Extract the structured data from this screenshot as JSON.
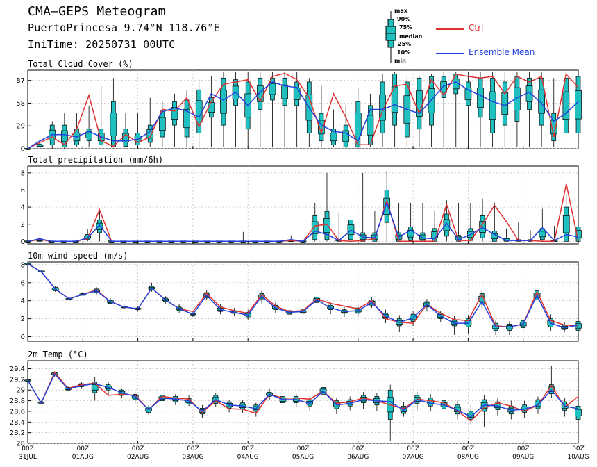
{
  "header": {
    "title": "CMA—GEPS Meteogram",
    "location": "PuertoPrincesa 9.74°N 118.76°E",
    "inittime": "IniTime: 20250731 00UTC"
  },
  "legend": {
    "box_labels": [
      "max",
      "90%",
      "75%",
      "median",
      "25%",
      "10%",
      "min"
    ],
    "ctrl_label": "Ctrl",
    "mean_label": "Ensemble Mean",
    "ctrl_color": "#e03030",
    "mean_color": "#2040e0",
    "box_color": "#20c0c0"
  },
  "x_ticks": [
    {
      "top": "00Z",
      "bottom": "31JUL"
    },
    {
      "top": "00Z",
      "bottom": "01AUG"
    },
    {
      "top": "00Z",
      "bottom": "02AUG"
    },
    {
      "top": "00Z",
      "bottom": "03AUG"
    },
    {
      "top": "00Z",
      "bottom": "04AUG"
    },
    {
      "top": "00Z",
      "bottom": "05AUG"
    },
    {
      "top": "00Z",
      "bottom": "06AUG"
    },
    {
      "top": "00Z",
      "bottom": "07AUG"
    },
    {
      "top": "00Z",
      "bottom": "08AUG"
    },
    {
      "top": "00Z",
      "bottom": "09AUG"
    },
    {
      "top": "00Z",
      "bottom": "10AUG"
    }
  ],
  "chart_data": [
    {
      "type": "line",
      "title": "Total Cloud Cover (%)",
      "ylim": [
        0,
        100
      ],
      "yticks": [
        "0",
        "29",
        "58",
        "87"
      ],
      "ytick_values": [
        0,
        29,
        58,
        87
      ],
      "ctrl": [
        0,
        8,
        15,
        5,
        25,
        68,
        10,
        3,
        18,
        8,
        15,
        50,
        48,
        65,
        28,
        60,
        82,
        85,
        88,
        60,
        92,
        96,
        88,
        65,
        20,
        70,
        40,
        5,
        5,
        48,
        80,
        82,
        45,
        88,
        68,
        95,
        92,
        90,
        92,
        70,
        92,
        85,
        92,
        15,
        95,
        78
      ],
      "mean": [
        0,
        10,
        18,
        18,
        15,
        22,
        15,
        10,
        10,
        12,
        22,
        47,
        52,
        48,
        40,
        70,
        62,
        72,
        55,
        72,
        85,
        80,
        78,
        52,
        30,
        22,
        20,
        10,
        50,
        50,
        56,
        50,
        45,
        62,
        80,
        85,
        75,
        68,
        60,
        55,
        65,
        72,
        58,
        35,
        45,
        60
      ],
      "box_lo": [
        0,
        0,
        0,
        0,
        2,
        2,
        2,
        2,
        2,
        2,
        2,
        2,
        2,
        2,
        2,
        2,
        2,
        2,
        2,
        2,
        2,
        2,
        2,
        2,
        2,
        2,
        2,
        2,
        2,
        2,
        2,
        2,
        2,
        2,
        2,
        2,
        2,
        2,
        2,
        2,
        2,
        2,
        2,
        2,
        2,
        2
      ],
      "box_q1": [
        0,
        2,
        5,
        2,
        5,
        10,
        5,
        2,
        3,
        5,
        8,
        15,
        30,
        15,
        20,
        40,
        30,
        55,
        25,
        50,
        62,
        55,
        55,
        20,
        10,
        5,
        2,
        2,
        5,
        20,
        30,
        15,
        25,
        30,
        65,
        70,
        55,
        40,
        20,
        30,
        35,
        50,
        30,
        10,
        20,
        20
      ],
      "box_q3": [
        0,
        6,
        30,
        30,
        25,
        25,
        25,
        60,
        25,
        20,
        30,
        48,
        60,
        62,
        75,
        65,
        90,
        88,
        85,
        90,
        90,
        90,
        85,
        85,
        45,
        25,
        30,
        60,
        55,
        85,
        95,
        85,
        90,
        92,
        92,
        95,
        85,
        90,
        90,
        85,
        92,
        90,
        90,
        45,
        90,
        92
      ],
      "box_hi": [
        0,
        18,
        35,
        45,
        45,
        55,
        80,
        90,
        45,
        45,
        65,
        60,
        70,
        75,
        88,
        92,
        98,
        98,
        98,
        98,
        98,
        98,
        98,
        90,
        80,
        50,
        55,
        78,
        70,
        95,
        98,
        92,
        92,
        95,
        98,
        98,
        98,
        98,
        98,
        98,
        98,
        98,
        98,
        90,
        98,
        98
      ]
    },
    {
      "type": "line",
      "title": "Total precipitation (mm/6h)",
      "ylim": [
        -0.3,
        8.8
      ],
      "yticks": [
        "0",
        "2",
        "4",
        "6",
        "8"
      ],
      "ytick_values": [
        0,
        2,
        4,
        6,
        8
      ],
      "ctrl": [
        0,
        0.2,
        0,
        0,
        0,
        0.3,
        3.7,
        0,
        0,
        0,
        0,
        0,
        0,
        0,
        0,
        0,
        0,
        0,
        0,
        0,
        0,
        0,
        0.1,
        0,
        1.8,
        2,
        0.1,
        0,
        0.1,
        0.3,
        4.8,
        0,
        0,
        0,
        0,
        4.3,
        0.1,
        0.1,
        2,
        4.2,
        2.3,
        0.1,
        0.1,
        0,
        0,
        6.7,
        0
      ],
      "mean": [
        0,
        0.3,
        0,
        0,
        0,
        0.4,
        1.9,
        0,
        0,
        0,
        0,
        0,
        0,
        0,
        0,
        0,
        0,
        0,
        0,
        0,
        0,
        0,
        0.2,
        0,
        1.2,
        0.8,
        0.1,
        1.3,
        0.5,
        0.4,
        4.5,
        0.5,
        1.3,
        0.4,
        0.3,
        2.1,
        0.2,
        0.8,
        1.6,
        0.8,
        0.1,
        0.1,
        0.1,
        1.6,
        0.1,
        0.8,
        0.5
      ],
      "box_lo": [
        0,
        0,
        0,
        0,
        0,
        0,
        0,
        0,
        0,
        0,
        0,
        0,
        0,
        0,
        0,
        0,
        0,
        0,
        0,
        0,
        0,
        0,
        0,
        0,
        0,
        0,
        0,
        0,
        0,
        0,
        0,
        0,
        0,
        0,
        0,
        0,
        0,
        0,
        0,
        0,
        0,
        0,
        0,
        0,
        0,
        0,
        0
      ],
      "box_q1": [
        0,
        0,
        0,
        0,
        0,
        0.2,
        1,
        0,
        0,
        0,
        0,
        0,
        0,
        0,
        0,
        0,
        0,
        0,
        0,
        0,
        0,
        0,
        0,
        0,
        0.2,
        0.2,
        0,
        0.2,
        0,
        0,
        2.2,
        0,
        0.1,
        0,
        0,
        0.6,
        0,
        0.1,
        0.4,
        0,
        0,
        0,
        0,
        0.2,
        0,
        0,
        0
      ],
      "box_q3": [
        0,
        0.3,
        0,
        0,
        0,
        0.8,
        2.5,
        0,
        0,
        0,
        0,
        0,
        0,
        0,
        0,
        0,
        0,
        0,
        0,
        0,
        0,
        0,
        0.1,
        0,
        3,
        3.5,
        0.2,
        2.5,
        1,
        1,
        6,
        1,
        1.7,
        1,
        1.5,
        3.2,
        0.7,
        1.5,
        3,
        1.2,
        0.4,
        0.2,
        0.2,
        1.5,
        0.1,
        4,
        1.7
      ],
      "box_hi": [
        0,
        0.4,
        0,
        0,
        0,
        1.4,
        3.8,
        0,
        0,
        0,
        0,
        0,
        0,
        0,
        0,
        0,
        0,
        0,
        1.1,
        0,
        0,
        0,
        0.7,
        0,
        4.5,
        8,
        3.3,
        4.5,
        8,
        3.6,
        8.2,
        4.5,
        4.5,
        4.5,
        3.5,
        4.8,
        4.5,
        4.5,
        5,
        4.5,
        1.5,
        2.2,
        1.3,
        3.8,
        1.8,
        5.5,
        1.8
      ]
    },
    {
      "type": "line",
      "title": "10m wind speed (m/s)",
      "ylim": [
        -0.5,
        8.3
      ],
      "yticks": [
        "0",
        "2",
        "4",
        "6",
        "8"
      ],
      "ytick_values": [
        0,
        2,
        4,
        6,
        8
      ],
      "ctrl": [
        8.1,
        7.2,
        5.3,
        4.2,
        4.7,
        5.2,
        3.9,
        3.3,
        3.1,
        5.4,
        4.1,
        3.1,
        2.8,
        4.8,
        3.3,
        2.9,
        2.6,
        4.7,
        3.4,
        2.8,
        2.9,
        4.2,
        3.7,
        3.4,
        3.1,
        4,
        2,
        1.6,
        1.5,
        3.6,
        2.6,
        1.9,
        1.8,
        4.7,
        1.2,
        1.1,
        1.4,
        5,
        1.8,
        1.3,
        1.2
      ],
      "mean": [
        8.1,
        7.2,
        5.3,
        4.2,
        4.7,
        5.1,
        3.9,
        3.3,
        3.1,
        5.4,
        4.1,
        3.1,
        2.5,
        4.6,
        3,
        2.7,
        2.4,
        4.5,
        3.2,
        2.7,
        2.8,
        4.1,
        3.2,
        2.8,
        2.9,
        3.8,
        2.3,
        1.6,
        2.1,
        3.6,
        2.3,
        1.5,
        1.5,
        3.9,
        1.1,
        1.1,
        1.4,
        4.6,
        1.5,
        1,
        1.3
      ],
      "box_lo": [
        8.1,
        7.1,
        5,
        4,
        4.5,
        4.7,
        3.6,
        3.1,
        2.8,
        5,
        3.6,
        2.6,
        2.2,
        4.1,
        2.5,
        2.3,
        1.9,
        3.7,
        2.6,
        2.3,
        2.3,
        3.5,
        2.5,
        2.2,
        2.2,
        3.2,
        1.5,
        0.5,
        1.2,
        2.8,
        1.6,
        0.2,
        0.3,
        3,
        0.2,
        0.2,
        0.5,
        3.5,
        0.6,
        0.5,
        0.3
      ],
      "box_q1": [
        8.1,
        7.2,
        5.1,
        4.1,
        4.6,
        4.9,
        3.7,
        3.2,
        3,
        5.2,
        3.9,
        2.9,
        2.4,
        4.3,
        2.8,
        2.6,
        2.2,
        4.2,
        3,
        2.5,
        2.6,
        3.8,
        3,
        2.6,
        2.6,
        3.5,
        2,
        1.2,
        1.7,
        3.3,
        2,
        1.2,
        1.1,
        3.6,
        0.7,
        0.7,
        1,
        4.1,
        1.1,
        0.8,
        0.7
      ],
      "box_q3": [
        8.1,
        7.3,
        5.5,
        4.3,
        4.8,
        5.3,
        4.1,
        3.4,
        3.2,
        5.6,
        4.3,
        3.3,
        2.6,
        4.9,
        3.3,
        2.9,
        2.7,
        4.8,
        3.5,
        2.9,
        3,
        4.4,
        3.5,
        3,
        3.2,
        4.1,
        2.6,
        2,
        2.5,
        3.9,
        2.6,
        1.9,
        2,
        4.8,
        1.5,
        1.4,
        1.8,
        5.1,
        2,
        1.3,
        1.7
      ],
      "box_hi": [
        8.1,
        7.4,
        5.6,
        4.4,
        5,
        5.5,
        4.3,
        3.6,
        3.4,
        6,
        4.5,
        3.6,
        2.9,
        5.2,
        3.6,
        3.2,
        3,
        5.1,
        3.8,
        3.1,
        3.3,
        4.7,
        3.8,
        3.3,
        3.5,
        4.4,
        3,
        2.4,
        2.9,
        4.2,
        2.9,
        2.3,
        2.4,
        5.2,
        1.8,
        1.7,
        2.1,
        5.4,
        2.5,
        1.6,
        2
      ]
    },
    {
      "type": "line",
      "title": "2m Temp (°C)",
      "ylim": [
        28,
        29.55
      ],
      "yticks": [
        "28",
        "28.2",
        "28.4",
        "28.6",
        "28.8",
        "29",
        "29.2",
        "29.4"
      ],
      "ytick_values": [
        28,
        28.2,
        28.4,
        28.6,
        28.8,
        29,
        29.2,
        29.4
      ],
      "ctrl": [
        29.18,
        28.76,
        29.33,
        29.03,
        29.1,
        29.13,
        28.9,
        28.92,
        28.9,
        28.63,
        28.88,
        28.85,
        28.83,
        28.58,
        28.8,
        28.65,
        28.64,
        28.56,
        28.92,
        28.85,
        28.85,
        28.83,
        28.98,
        28.75,
        28.78,
        28.85,
        28.8,
        28.72,
        28.65,
        28.83,
        28.8,
        28.76,
        28.61,
        28.42,
        28.67,
        28.76,
        28.7,
        28.6,
        28.72,
        29.08,
        28.68,
        28.88
      ],
      "mean": [
        29.18,
        28.76,
        29.3,
        29.02,
        29.08,
        29.12,
        29.05,
        28.95,
        28.88,
        28.63,
        28.85,
        28.83,
        28.8,
        28.6,
        28.82,
        28.72,
        28.7,
        28.65,
        28.92,
        28.82,
        28.82,
        28.75,
        28.98,
        28.72,
        28.75,
        28.82,
        28.8,
        28.78,
        28.62,
        28.82,
        28.75,
        28.72,
        28.62,
        28.5,
        28.72,
        28.7,
        28.62,
        28.64,
        28.72,
        29.0,
        28.7,
        28.65
      ],
      "box_lo": [
        29.18,
        28.74,
        29.24,
        28.98,
        29.02,
        28.8,
        28.9,
        28.85,
        28.75,
        28.54,
        28.72,
        28.72,
        28.7,
        28.48,
        28.68,
        28.58,
        28.56,
        28.5,
        28.82,
        28.7,
        28.68,
        28.6,
        28.86,
        28.55,
        28.62,
        28.65,
        28.6,
        28.05,
        28.5,
        28.62,
        28.6,
        28.5,
        28.45,
        28.35,
        28.3,
        28.52,
        28.45,
        28.48,
        28.55,
        28.85,
        28.5,
        28.3
      ],
      "box_q1": [
        29.18,
        28.75,
        29.28,
        29.0,
        29.06,
        28.95,
        29.0,
        28.9,
        28.82,
        28.58,
        28.8,
        28.78,
        28.74,
        28.55,
        28.75,
        28.66,
        28.64,
        28.6,
        28.88,
        28.76,
        28.76,
        28.7,
        28.92,
        28.65,
        28.7,
        28.76,
        28.72,
        28.45,
        28.56,
        28.75,
        28.7,
        28.65,
        28.55,
        28.45,
        28.6,
        28.63,
        28.55,
        28.58,
        28.65,
        28.93,
        28.62,
        28.45
      ],
      "box_q3": [
        29.18,
        28.78,
        29.33,
        29.05,
        29.12,
        29.15,
        29.1,
        29.0,
        28.92,
        28.68,
        28.9,
        28.88,
        28.84,
        28.66,
        28.9,
        28.78,
        28.76,
        28.72,
        28.96,
        28.88,
        28.88,
        28.82,
        29.05,
        28.8,
        28.82,
        28.9,
        28.88,
        29.0,
        28.7,
        28.9,
        28.85,
        28.8,
        28.72,
        28.6,
        28.82,
        28.78,
        28.7,
        28.72,
        28.82,
        29.1,
        28.78,
        28.7
      ],
      "box_hi": [
        29.18,
        28.8,
        29.35,
        29.08,
        29.16,
        29.25,
        29.15,
        29.02,
        28.96,
        28.72,
        28.94,
        28.92,
        28.9,
        28.72,
        28.95,
        28.82,
        28.82,
        28.76,
        29.02,
        28.92,
        28.92,
        28.88,
        29.1,
        28.86,
        28.88,
        28.96,
        28.94,
        29.1,
        28.78,
        28.96,
        28.92,
        28.86,
        28.8,
        28.74,
        28.9,
        28.86,
        28.8,
        28.8,
        28.88,
        29.45,
        28.86,
        28.76
      ]
    }
  ]
}
